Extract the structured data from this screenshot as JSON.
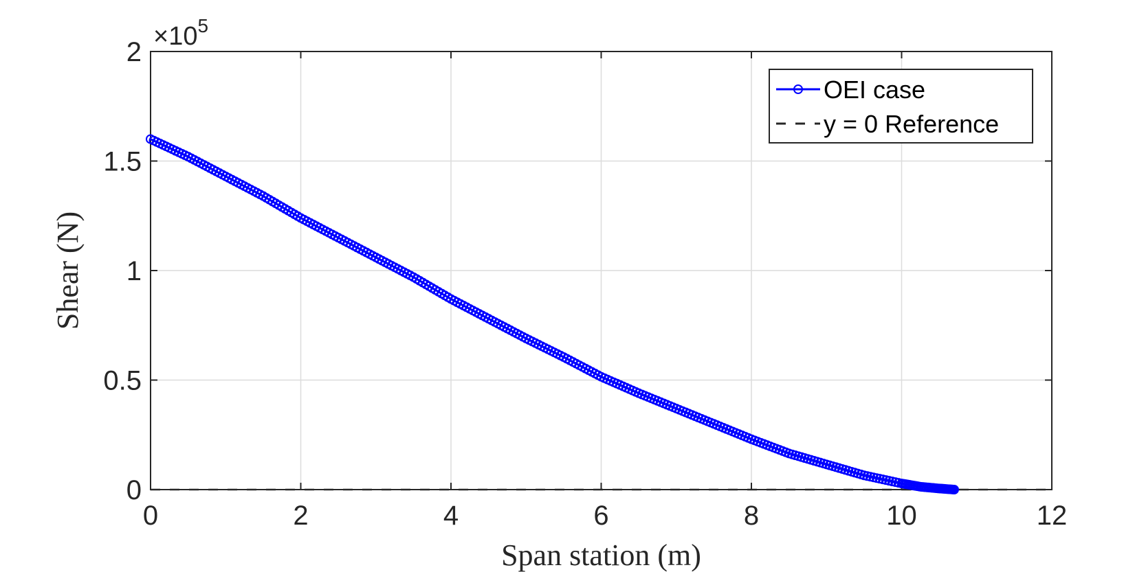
{
  "chart_data": {
    "type": "line",
    "xlabel": "Span station (m)",
    "ylabel": "Shear (N)",
    "xlim": [
      0,
      12
    ],
    "ylim": [
      0,
      200000
    ],
    "xticks": [
      0,
      2,
      4,
      6,
      8,
      10,
      12
    ],
    "xtick_labels": [
      "0",
      "2",
      "4",
      "6",
      "8",
      "10",
      "12"
    ],
    "yticks": [
      0,
      50000,
      100000,
      150000,
      200000
    ],
    "ytick_labels": [
      "0",
      "0.5",
      "1",
      "1.5",
      "2"
    ],
    "y_exponent_label": {
      "base": "×10",
      "power": "5"
    },
    "grid": true,
    "legend_position": "top-right",
    "series": [
      {
        "name": "OEI case",
        "color": "#0000ff",
        "marker": "circle",
        "line_style": "solid",
        "x": [
          0,
          0.5,
          1,
          1.5,
          2,
          2.5,
          3,
          3.5,
          4,
          4.5,
          5,
          5.5,
          6,
          6.5,
          7,
          7.5,
          8,
          8.5,
          9,
          9.5,
          10,
          10.25,
          10.5,
          10.7
        ],
        "y": [
          160000,
          152000,
          143000,
          134000,
          124000,
          115000,
          106000,
          97000,
          87000,
          78000,
          69000,
          60500,
          51500,
          44000,
          37000,
          30000,
          23000,
          16500,
          11500,
          6500,
          2800,
          1300,
          500,
          0
        ]
      },
      {
        "name": "y = 0 Reference",
        "color": "#262626",
        "line_style": "dashed",
        "x": [
          0,
          12
        ],
        "y": [
          0,
          0
        ]
      }
    ]
  }
}
